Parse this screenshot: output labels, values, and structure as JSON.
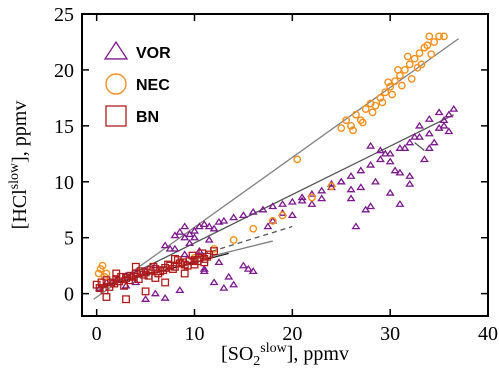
{
  "chart_data": {
    "type": "scatter",
    "title": "",
    "xlabel_parts": [
      "[SO",
      "2",
      "slow",
      "], ppmv"
    ],
    "ylabel_parts": [
      "[HCl",
      "slow",
      "], ppmv"
    ],
    "xlim": [
      -1.5,
      40
    ],
    "ylim": [
      -2,
      25
    ],
    "xticks": [
      0,
      10,
      20,
      30,
      40
    ],
    "yticks": [
      0,
      5,
      10,
      15,
      20,
      25
    ],
    "grid": false,
    "legend_position": "top-left",
    "colors": {
      "VOR": "#7b1a8c",
      "NEC": "#f5901e",
      "BN": "#b01c1c",
      "fit": "#808080",
      "fit_dark": "#333333"
    },
    "legend": [
      {
        "name": "VOR",
        "marker": "triangle",
        "color": "#7b1a8c"
      },
      {
        "name": "NEC",
        "marker": "circle",
        "color": "#f5901e"
      },
      {
        "name": "BN",
        "marker": "square",
        "color": "#b01c1c"
      }
    ],
    "series": [
      {
        "name": "VOR",
        "marker": "triangle",
        "color": "#7b1a8c",
        "x": [
          0.3,
          1.0,
          2.0,
          3.0,
          4.0,
          5.0,
          6.0,
          7.0,
          7.5,
          8.0,
          8.5,
          9.0,
          9.5,
          10.0,
          10.5,
          11.0,
          11.5,
          12.0,
          12.5,
          13.0,
          14.0,
          15.0,
          16.0,
          17.0,
          18.0,
          19.0,
          20.0,
          21.0,
          22.0,
          23.0,
          24.0,
          25.0,
          26.0,
          27.0,
          28.0,
          29.0,
          30.0,
          31.0,
          32.0,
          33.0,
          34.0,
          35.0,
          35.5,
          36.0,
          36.5,
          26.5,
          27.5,
          28.5,
          29.5,
          30.5,
          31.5,
          32.5,
          33.5,
          34.5,
          35.5,
          30.0,
          31.0,
          32.0,
          26.0,
          27.0,
          8.0,
          9.0,
          10.0,
          11.0,
          12.0,
          13.0,
          14.0,
          15.0,
          16.0,
          5.0,
          6.0,
          7.0,
          8.5,
          9.5,
          10.5,
          11.5,
          12.5,
          3.0,
          4.0,
          18.0,
          19.0,
          20.0,
          21.0,
          22.0,
          23.0,
          24.0,
          25.0,
          26.0,
          28.0,
          29.0,
          33.0,
          34.0,
          35.0,
          36.0,
          9.0,
          10.0,
          11.0,
          13.5,
          15.5,
          17.5,
          28.0,
          30.0,
          31.0,
          32.0,
          34.0
        ],
        "y": [
          0.5,
          1.0,
          1.2,
          1.6,
          1.8,
          2.0,
          2.5,
          4.3,
          4.0,
          5.2,
          5.5,
          5.0,
          5.3,
          5.6,
          6.0,
          6.2,
          6.0,
          5.8,
          6.4,
          6.5,
          6.8,
          7.0,
          7.3,
          7.5,
          7.8,
          8.0,
          8.2,
          8.6,
          8.9,
          9.2,
          9.5,
          10.0,
          10.5,
          11.0,
          11.5,
          12.0,
          12.5,
          13.0,
          13.5,
          14.0,
          14.3,
          14.8,
          15.5,
          16.0,
          16.5,
          6.0,
          7.5,
          10.0,
          12.5,
          11.0,
          13.0,
          14.0,
          12.0,
          13.5,
          15.0,
          9.0,
          8.0,
          10.5,
          8.5,
          9.5,
          4.0,
          3.5,
          3.0,
          2.0,
          1.0,
          0.5,
          0.8,
          2.5,
          2.0,
          -0.5,
          0.0,
          -0.4,
          0.3,
          4.5,
          3.8,
          4.8,
          2.8,
          0.7,
          1.0,
          6.5,
          7.2,
          7.0,
          8.3,
          8.0,
          8.5,
          9.8,
          10.0,
          9.3,
          13.2,
          12.8,
          15.0,
          15.6,
          16.2,
          14.5,
          6.0,
          5.0,
          2.2,
          1.5,
          2.2,
          6.0,
          7.8,
          11.8,
          10.8,
          9.8,
          13.0
        ]
      },
      {
        "name": "NEC",
        "marker": "circle",
        "color": "#f5901e",
        "x": [
          0.2,
          0.4,
          0.6,
          0.8,
          1.0,
          10.0,
          12.0,
          14.0,
          16.0,
          18.0,
          19.0,
          20.5,
          22.0,
          24.0,
          25.0,
          25.5,
          26.0,
          26.5,
          27.0,
          27.5,
          28.0,
          28.5,
          29.0,
          29.5,
          30.0,
          30.5,
          31.0,
          31.5,
          32.0,
          32.5,
          33.0,
          33.5,
          34.0,
          34.5,
          35.0,
          26.2,
          27.2,
          28.2,
          29.2,
          30.2,
          31.2,
          32.2,
          29.8,
          30.8,
          31.8,
          33.2,
          34.2,
          33.8,
          32.8,
          35.5
        ],
        "y": [
          1.8,
          2.2,
          2.5,
          1.5,
          1.8,
          3.2,
          4.0,
          4.8,
          5.8,
          6.5,
          7.0,
          12.0,
          8.6,
          9.6,
          14.8,
          15.5,
          15.0,
          16.0,
          15.5,
          16.5,
          17.0,
          16.8,
          17.5,
          18.0,
          18.5,
          19.0,
          19.5,
          20.0,
          20.5,
          21.0,
          21.5,
          22.0,
          23.0,
          22.5,
          23.0,
          14.6,
          15.3,
          16.2,
          17.1,
          17.8,
          18.6,
          19.2,
          18.9,
          20.0,
          21.2,
          20.5,
          21.4,
          22.2,
          20.2,
          23.0
        ]
      },
      {
        "name": "BN",
        "marker": "square",
        "color": "#b01c1c",
        "x": [
          0.0,
          0.5,
          1.0,
          1.5,
          2.0,
          2.5,
          3.0,
          3.5,
          4.0,
          4.5,
          5.0,
          5.5,
          6.0,
          6.5,
          7.0,
          7.5,
          8.0,
          8.5,
          9.0,
          9.5,
          10.0,
          10.5,
          11.0,
          11.5,
          12.0,
          0.3,
          0.8,
          1.3,
          1.8,
          2.3,
          2.8,
          3.3,
          3.8,
          4.3,
          4.8,
          5.3,
          5.8,
          6.3,
          6.8,
          7.3,
          7.8,
          8.3,
          8.8,
          9.3,
          9.8,
          10.3,
          10.8,
          11.3,
          1.0,
          3.0,
          5.0,
          7.0,
          9.0,
          11.0,
          2.0,
          4.0,
          6.0,
          8.0,
          10.0
        ],
        "y": [
          0.8,
          1.0,
          1.2,
          1.0,
          1.3,
          1.5,
          1.4,
          1.6,
          1.8,
          2.0,
          1.9,
          2.1,
          2.2,
          2.0,
          2.3,
          2.5,
          2.4,
          2.7,
          2.6,
          2.9,
          3.0,
          3.2,
          3.1,
          3.5,
          3.8,
          0.5,
          0.3,
          0.6,
          0.9,
          1.1,
          0.7,
          1.2,
          1.5,
          1.3,
          1.7,
          1.6,
          2.4,
          1.8,
          2.1,
          2.6,
          2.2,
          3.0,
          2.8,
          2.5,
          3.4,
          2.9,
          3.6,
          3.3,
          -0.3,
          -0.5,
          0.2,
          1.0,
          1.8,
          2.8,
          1.8,
          2.4,
          1.4,
          3.1,
          2.6
        ]
      }
    ],
    "fit_lines": [
      {
        "x": [
          -0.3,
          37.0
        ],
        "y": [
          -0.5,
          22.8
        ],
        "color": "#808080",
        "dashed": false
      },
      {
        "x": [
          0.0,
          36.5
        ],
        "y": [
          0.2,
          16.0
        ],
        "color": "#555555",
        "dashed": false
      },
      {
        "x": [
          0.0,
          13.5
        ],
        "y": [
          0.5,
          3.6
        ],
        "color": "#222222",
        "dashed": false
      },
      {
        "x": [
          10.0,
          20.0
        ],
        "y": [
          3.3,
          6.0
        ],
        "color": "#555555",
        "dashed": true
      },
      {
        "x": [
          11.5,
          18.0
        ],
        "y": [
          3.3,
          4.7
        ],
        "color": "#808080",
        "dashed": false
      },
      {
        "x": [
          32.5,
          33.5
        ],
        "y": [
          13.5,
          12.8
        ],
        "color": "#555555",
        "dashed": false
      }
    ]
  }
}
